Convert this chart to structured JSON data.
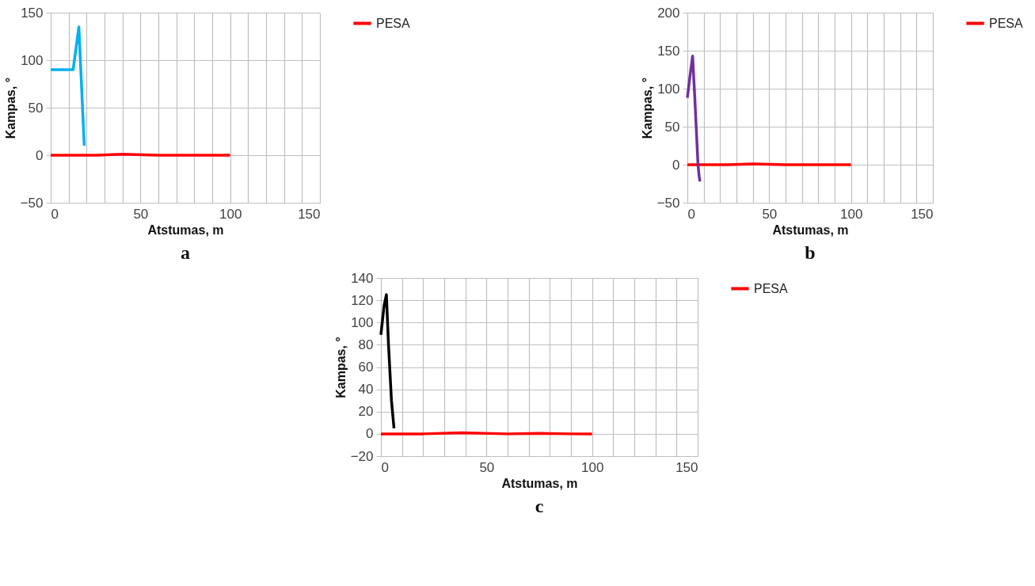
{
  "chart_data": [
    {
      "type": "line",
      "xlabel": "Atstumas, m",
      "ylabel": "Kampas, °",
      "annotations": [
        "a"
      ],
      "xlim": [
        0,
        150
      ],
      "xticks": [
        0,
        {
          "value": 10,
          "label": null
        },
        {
          "value": 20,
          "label": null
        },
        {
          "value": 30,
          "label": null
        },
        {
          "value": 40,
          "label": null
        },
        50,
        {
          "value": 60,
          "label": null
        },
        {
          "value": 70,
          "label": null
        },
        {
          "value": 80,
          "label": null
        },
        {
          "value": 90,
          "label": null
        },
        100,
        {
          "value": 110,
          "label": null
        },
        {
          "value": 120,
          "label": null
        },
        {
          "value": 130,
          "label": null
        },
        {
          "value": 140,
          "label": null
        },
        150
      ],
      "ylim": [
        -50,
        150
      ],
      "yticks": [
        -50,
        0,
        50,
        100,
        150
      ],
      "grid": true,
      "legend": "right",
      "series": [
        {
          "name": "PESA",
          "color": "#ff0000",
          "x": [
            0,
            25,
            40,
            60,
            75,
            100
          ],
          "values": [
            0,
            0,
            1,
            0,
            0,
            0
          ]
        },
        {
          "color": "#00b0f0",
          "x": [
            0,
            12.5,
            15.7,
            18.7
          ],
          "values": [
            90,
            90,
            135,
            10
          ]
        }
      ]
    },
    {
      "type": "line",
      "xlabel": "Atstumas, m",
      "ylabel": "Kampas, °",
      "annotations": [
        "b"
      ],
      "xlim": [
        0,
        150
      ],
      "xticks": [
        0,
        {
          "value": 10,
          "label": null
        },
        {
          "value": 20,
          "label": null
        },
        {
          "value": 30,
          "label": null
        },
        {
          "value": 40,
          "label": null
        },
        50,
        {
          "value": 60,
          "label": null
        },
        {
          "value": 70,
          "label": null
        },
        {
          "value": 80,
          "label": null
        },
        {
          "value": 90,
          "label": null
        },
        100,
        {
          "value": 110,
          "label": null
        },
        {
          "value": 120,
          "label": null
        },
        {
          "value": 130,
          "label": null
        },
        {
          "value": 140,
          "label": null
        },
        150
      ],
      "ylim": [
        -50,
        200
      ],
      "yticks": [
        -50,
        0,
        50,
        100,
        150,
        200
      ],
      "grid": true,
      "legend": "right",
      "series": [
        {
          "name": "PESA",
          "color": "#ff0000",
          "x": [
            0,
            25,
            40,
            60,
            75,
            100
          ],
          "values": [
            0,
            0,
            1,
            0,
            0,
            0
          ]
        },
        {
          "color": "#7030a0",
          "x": [
            0,
            1.5,
            3.2,
            4.5,
            6.5,
            7.2,
            7.7
          ],
          "values": [
            88,
            115,
            143,
            90,
            0,
            -15,
            -22
          ]
        }
      ]
    },
    {
      "type": "line",
      "xlabel": "Atstumas, m",
      "ylabel": "Kampas, °",
      "annotations": [
        "c"
      ],
      "xlim": [
        0,
        150
      ],
      "xticks": [
        0,
        {
          "value": 10,
          "label": null
        },
        {
          "value": 20,
          "label": null
        },
        {
          "value": 30,
          "label": null
        },
        {
          "value": 40,
          "label": null
        },
        50,
        {
          "value": 60,
          "label": null
        },
        {
          "value": 70,
          "label": null
        },
        {
          "value": 80,
          "label": null
        },
        {
          "value": 90,
          "label": null
        },
        100,
        {
          "value": 110,
          "label": null
        },
        {
          "value": 120,
          "label": null
        },
        {
          "value": 130,
          "label": null
        },
        {
          "value": 140,
          "label": null
        },
        150
      ],
      "ylim": [
        -20,
        140
      ],
      "yticks": [
        -20,
        0,
        20,
        40,
        60,
        80,
        100,
        120,
        140
      ],
      "grid": true,
      "legend": "right",
      "series": [
        {
          "name": "PESA",
          "color": "#ff0000",
          "x": [
            0,
            20,
            38,
            60,
            75,
            90,
            100
          ],
          "values": [
            0,
            0,
            1,
            0,
            0.5,
            0,
            0
          ]
        },
        {
          "color": "#000000",
          "x": [
            0,
            1.5,
            2.6,
            3.6,
            5,
            6.2
          ],
          "values": [
            89,
            115,
            125,
            80,
            30,
            5
          ]
        }
      ]
    }
  ]
}
